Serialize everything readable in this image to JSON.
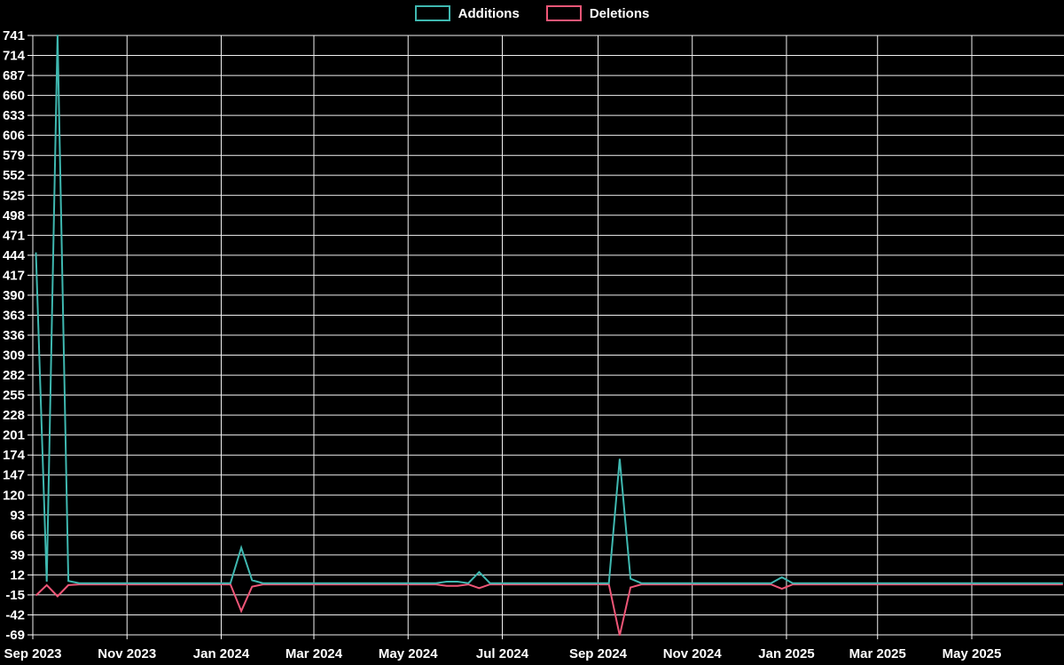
{
  "window": {
    "background": "#000000",
    "text_color": "#ffffff"
  },
  "legend": {
    "position": "top-center",
    "items": [
      {
        "label": "Additions",
        "color": "#3fb8b0"
      },
      {
        "label": "Deletions",
        "color": "#ef5677"
      }
    ]
  },
  "chart_data": {
    "type": "line",
    "title": "",
    "xlabel": "",
    "ylabel": "",
    "grid": true,
    "background": "#000000",
    "grid_color": "#f0f0f0",
    "legend_position": "top-center",
    "ylim": [
      -69,
      741
    ],
    "y_axis": {
      "step": 27,
      "ticks": [
        741,
        714,
        687,
        660,
        633,
        606,
        579,
        552,
        525,
        498,
        471,
        444,
        417,
        390,
        363,
        336,
        309,
        282,
        255,
        228,
        201,
        174,
        147,
        120,
        93,
        66,
        39,
        12,
        -15,
        -42,
        -69
      ]
    },
    "x_axis": {
      "ticks": [
        {
          "label": "Sep 2023",
          "date": "2023-09-01"
        },
        {
          "label": "Nov 2023",
          "date": "2023-11-01"
        },
        {
          "label": "Jan 2024",
          "date": "2024-01-01"
        },
        {
          "label": "Mar 2024",
          "date": "2024-03-01"
        },
        {
          "label": "May 2024",
          "date": "2024-05-01"
        },
        {
          "label": "Jul 2024",
          "date": "2024-07-01"
        },
        {
          "label": "Sep 2024",
          "date": "2024-09-01"
        },
        {
          "label": "Nov 2024",
          "date": "2024-11-01"
        },
        {
          "label": "Jan 2025",
          "date": "2025-01-01"
        },
        {
          "label": "Mar 2025",
          "date": "2025-03-01"
        },
        {
          "label": "May 2025",
          "date": "2025-05-01"
        }
      ]
    },
    "x_range": {
      "start": "2023-09-03",
      "end": "2025-06-29",
      "interval": "weekly"
    },
    "series": [
      {
        "name": "Additions",
        "color": "#3fb8b0",
        "default_value": 0,
        "points": {
          "2023-09-03": 447,
          "2023-09-10": 2,
          "2023-09-17": 741,
          "2023-09-24": 3,
          "2024-01-14": 48,
          "2024-01-21": 4,
          "2024-05-26": 2,
          "2024-06-02": 2,
          "2024-06-16": 15,
          "2024-09-15": 168,
          "2024-09-22": 6,
          "2024-12-29": 8
        }
      },
      {
        "name": "Deletions",
        "color": "#ef5677",
        "default_value": 0,
        "points": {
          "2023-09-03": -15,
          "2023-09-10": -1,
          "2023-09-17": -16,
          "2023-09-24": -1,
          "2024-01-14": -36,
          "2024-01-21": -3,
          "2024-05-26": -2,
          "2024-06-02": -2,
          "2024-06-16": -5,
          "2024-09-15": -69,
          "2024-09-22": -4,
          "2024-12-29": -6
        }
      }
    ]
  }
}
